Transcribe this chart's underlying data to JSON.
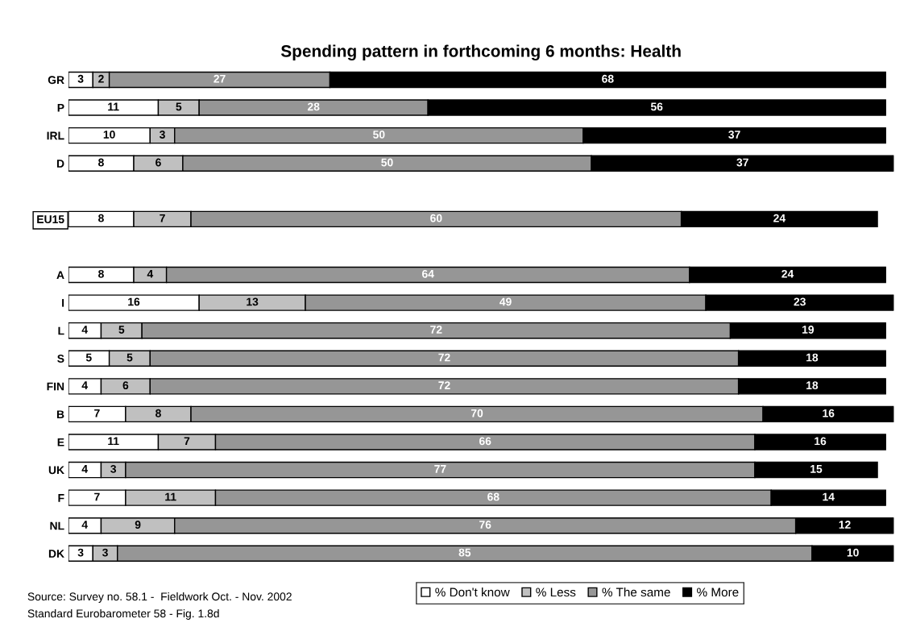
{
  "chart_data": {
    "type": "bar",
    "orientation": "horizontal",
    "stacked": true,
    "title": "Spending pattern in forthcoming 6 months: Health",
    "categories": [
      "GR",
      "P",
      "IRL",
      "D",
      null,
      "EU15",
      null,
      "A",
      "I",
      "L",
      "S",
      "FIN",
      "B",
      "E",
      "UK",
      "F",
      "NL",
      "DK"
    ],
    "series": [
      {
        "name": "% Don't know",
        "color": "#ffffff",
        "values": [
          3,
          11,
          10,
          8,
          null,
          8,
          null,
          8,
          16,
          4,
          5,
          4,
          7,
          11,
          4,
          7,
          4,
          3
        ]
      },
      {
        "name": "% Less",
        "color": "#c0c0c0",
        "values": [
          2,
          5,
          3,
          6,
          null,
          7,
          null,
          4,
          13,
          5,
          5,
          6,
          8,
          7,
          3,
          11,
          9,
          3
        ]
      },
      {
        "name": "% The same",
        "color": "#969696",
        "values": [
          27,
          28,
          50,
          50,
          null,
          60,
          null,
          64,
          49,
          72,
          72,
          72,
          70,
          66,
          77,
          68,
          76,
          85
        ]
      },
      {
        "name": "% More",
        "color": "#000000",
        "values": [
          68,
          56,
          37,
          37,
          null,
          24,
          null,
          24,
          23,
          19,
          18,
          18,
          16,
          16,
          15,
          14,
          12,
          10
        ]
      }
    ],
    "data_labels": true,
    "legend": "bottom",
    "grid": false,
    "tick_labels": "y",
    "annotations": [
      "Source: Survey no. 58.1 -  Fieldwork Oct. - Nov. 2002",
      "Standard Eurobarometer 58 - Fig. 1.8d"
    ]
  }
}
